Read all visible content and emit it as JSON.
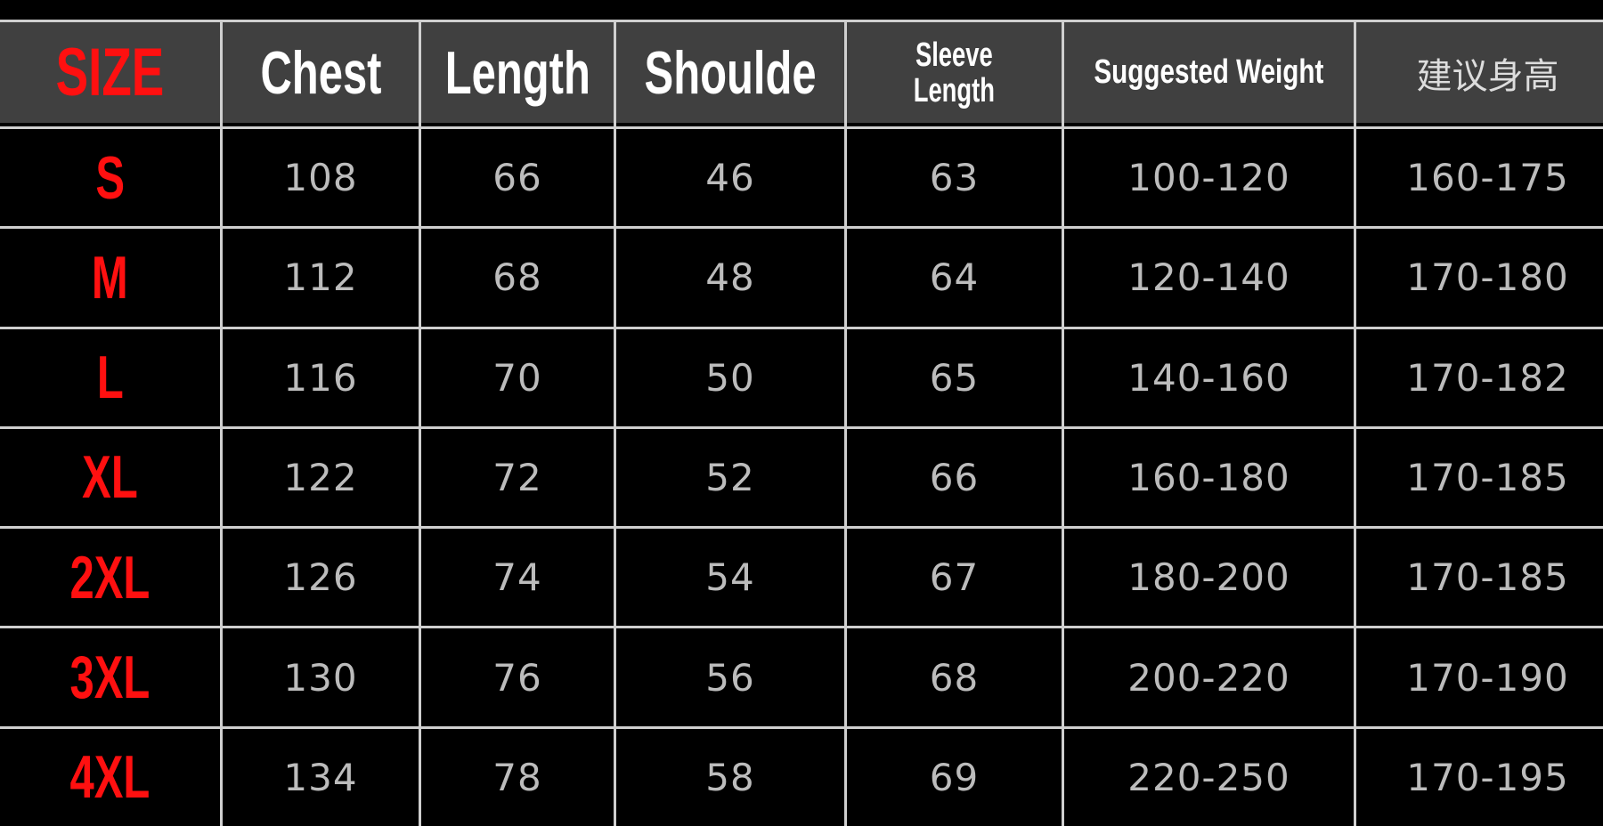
{
  "headers": [
    "SIZE",
    "Chest",
    "Length",
    "Shoulde",
    "Sleeve Length",
    "Suggested Weight",
    "建议身高"
  ],
  "headers_sleeve": [
    "Sleeve",
    "Length"
  ],
  "rows": [
    [
      "S",
      "108",
      "66",
      "46",
      "63",
      "100-120",
      "160-175"
    ],
    [
      "M",
      "112",
      "68",
      "48",
      "64",
      "120-140",
      "170-180"
    ],
    [
      "L",
      "116",
      "70",
      "50",
      "65",
      "140-160",
      "170-182"
    ],
    [
      "XL",
      "122",
      "72",
      "52",
      "66",
      "160-180",
      "170-185"
    ],
    [
      "2XL",
      "126",
      "74",
      "54",
      "67",
      "180-200",
      "170-185"
    ],
    [
      "3XL",
      "130",
      "76",
      "56",
      "68",
      "200-220",
      "170-190"
    ],
    [
      "4XL",
      "134",
      "78",
      "58",
      "69",
      "220-250",
      "170-195"
    ]
  ],
  "colors": {
    "size_label": "#ff1010",
    "header_bg": "#404040",
    "grid_lines": "#cfcfcf",
    "values": "#bcbcbc"
  }
}
